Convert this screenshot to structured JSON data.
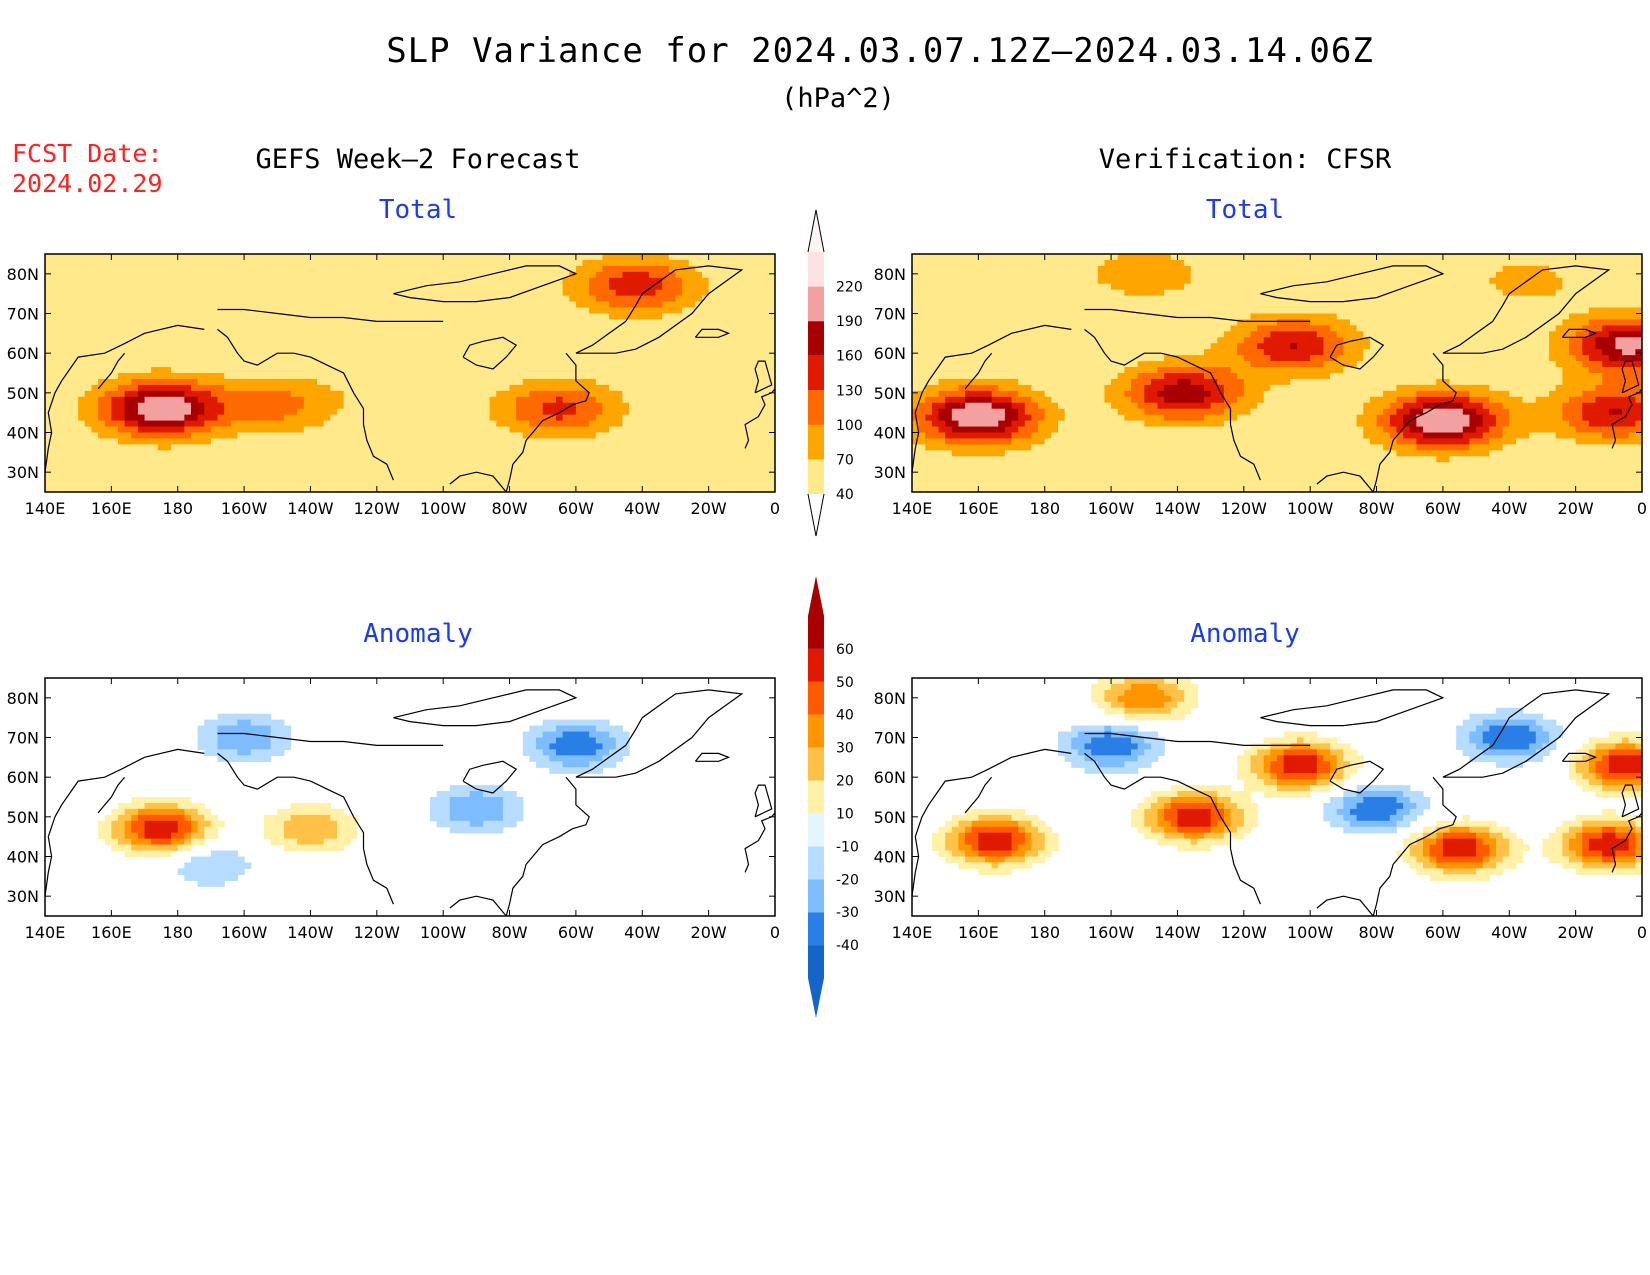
{
  "title": "SLP Variance for 2024.03.07.12Z–2024.03.14.06Z",
  "units": "(hPa^2)",
  "fcst_label": "FCST Date:",
  "fcst_date": "2024.02.29",
  "left_heading": "GEFS Week–2 Forecast",
  "right_heading": "Verification: CFSR",
  "panels": [
    {
      "id": "gefs-total",
      "label": "Total",
      "field": "total",
      "source": "GEFS Week-2 Forecast"
    },
    {
      "id": "cfsr-total",
      "label": "Total",
      "field": "total",
      "source": "Verification: CFSR"
    },
    {
      "id": "gefs-anomaly",
      "label": "Anomaly",
      "field": "anomaly",
      "source": "GEFS Week-2 Forecast"
    },
    {
      "id": "cfsr-anomaly",
      "label": "Anomaly",
      "field": "anomaly",
      "source": "Verification: CFSR"
    }
  ],
  "axes": {
    "x_ticks": [
      "140E",
      "160E",
      "180",
      "160W",
      "140W",
      "120W",
      "100W",
      "80W",
      "60W",
      "40W",
      "20W",
      "0"
    ],
    "y_ticks": [
      "80N",
      "70N",
      "60N",
      "50N",
      "40N",
      "30N"
    ],
    "lon_range": [
      140,
      360
    ],
    "lat_range": [
      25,
      85
    ]
  },
  "colorbars": {
    "total": {
      "levels": [
        "40",
        "70",
        "100",
        "130",
        "160",
        "190",
        "220"
      ],
      "colors": [
        "#ffe98a",
        "#ffa500",
        "#ff6a00",
        "#e01a00",
        "#a80000",
        "#f2a0a0",
        "#fde2e2"
      ]
    },
    "anomaly": {
      "levels": [
        "-40",
        "-30",
        "-20",
        "-10",
        "10",
        "20",
        "30",
        "40",
        "50",
        "60"
      ],
      "colors": [
        "#1565c8",
        "#2a7fe6",
        "#7cbcff",
        "#b6dcff",
        "#e4f5ff",
        "#ffffff",
        "#fff2a8",
        "#ffc247",
        "#ff9500",
        "#ff5a00",
        "#e01a00",
        "#a80000"
      ]
    }
  },
  "chart_data": [
    {
      "type": "heatmap",
      "panel": "GEFS Week-2 Forecast — Total",
      "blobs": [
        {
          "lon": 175,
          "lat": 46,
          "peak": 220
        },
        {
          "lon": 210,
          "lat": 47,
          "peak": 110
        },
        {
          "lon": 295,
          "lat": 46,
          "peak": 140
        },
        {
          "lon": 318,
          "lat": 77,
          "peak": 150
        },
        {
          "lon": 245,
          "lat": 50,
          "peak": 60
        }
      ]
    },
    {
      "type": "heatmap",
      "panel": "Verification: CFSR — Total",
      "blobs": [
        {
          "lon": 160,
          "lat": 44,
          "peak": 220
        },
        {
          "lon": 222,
          "lat": 50,
          "peak": 180
        },
        {
          "lon": 255,
          "lat": 62,
          "peak": 160
        },
        {
          "lon": 300,
          "lat": 43,
          "peak": 220
        },
        {
          "lon": 356,
          "lat": 62,
          "peak": 200
        },
        {
          "lon": 352,
          "lat": 45,
          "peak": 160
        },
        {
          "lon": 210,
          "lat": 80,
          "peak": 90
        },
        {
          "lon": 325,
          "lat": 78,
          "peak": 80
        }
      ]
    },
    {
      "type": "heatmap",
      "panel": "GEFS Week-2 Forecast — Anomaly",
      "blobs": [
        {
          "lon": 175,
          "lat": 47,
          "peak": 60
        },
        {
          "lon": 220,
          "lat": 47,
          "peak": 30
        },
        {
          "lon": 190,
          "lat": 38,
          "peak": -20
        },
        {
          "lon": 200,
          "lat": 70,
          "peak": -30
        },
        {
          "lon": 300,
          "lat": 68,
          "peak": -40
        },
        {
          "lon": 270,
          "lat": 52,
          "peak": -30
        }
      ]
    },
    {
      "type": "heatmap",
      "panel": "Verification: CFSR — Anomaly",
      "blobs": [
        {
          "lon": 165,
          "lat": 44,
          "peak": 60
        },
        {
          "lon": 225,
          "lat": 50,
          "peak": 60
        },
        {
          "lon": 257,
          "lat": 63,
          "peak": 60
        },
        {
          "lon": 305,
          "lat": 42,
          "peak": 60
        },
        {
          "lon": 355,
          "lat": 63,
          "peak": 60
        },
        {
          "lon": 350,
          "lat": 43,
          "peak": 60
        },
        {
          "lon": 210,
          "lat": 80,
          "peak": 40
        },
        {
          "lon": 280,
          "lat": 52,
          "peak": -40
        },
        {
          "lon": 320,
          "lat": 70,
          "peak": -40
        },
        {
          "lon": 200,
          "lat": 68,
          "peak": -40
        }
      ]
    }
  ]
}
